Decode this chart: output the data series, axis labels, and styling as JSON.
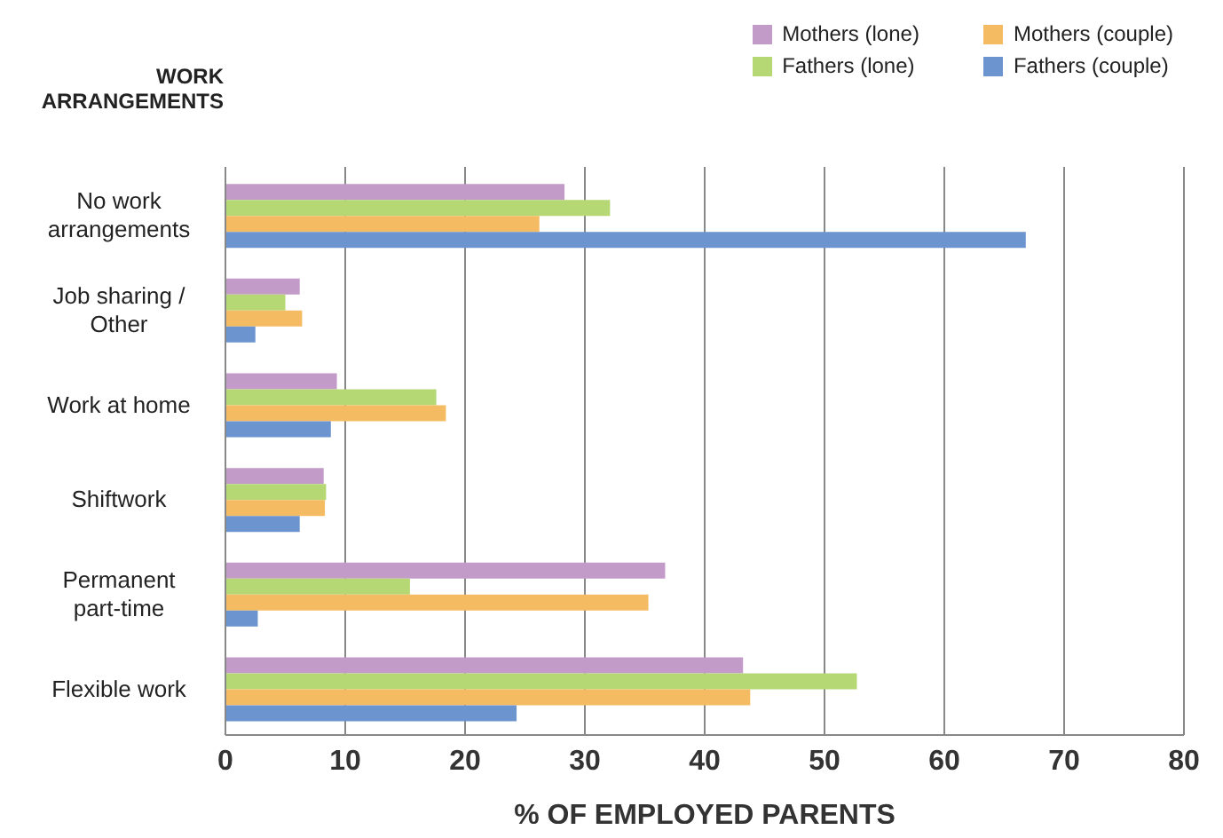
{
  "chart_data": {
    "type": "bar",
    "orientation": "horizontal",
    "ylabel": "WORK ARRANGEMENTS",
    "xlabel": "% OF EMPLOYED PARENTS",
    "categories": [
      "No work arrangements",
      "Job sharing / Other",
      "Work at home",
      "Shiftwork",
      "Permanent part-time",
      "Flexible work"
    ],
    "series": [
      {
        "name": "Mothers (lone)",
        "color": "#c39bc8",
        "values": [
          28.3,
          6.2,
          9.3,
          8.2,
          36.7,
          43.2
        ]
      },
      {
        "name": "Fathers (lone)",
        "color": "#b5d874",
        "values": [
          32.1,
          5.0,
          17.6,
          8.4,
          15.4,
          52.7
        ]
      },
      {
        "name": "Mothers (couple)",
        "color": "#f5bb62",
        "values": [
          26.2,
          6.4,
          18.4,
          8.3,
          35.3,
          43.8
        ]
      },
      {
        "name": "Fathers (couple)",
        "color": "#6c95cf",
        "values": [
          66.8,
          2.5,
          8.8,
          6.2,
          2.7,
          24.3
        ]
      }
    ],
    "xlim": [
      0,
      80
    ],
    "xticks": [
      0,
      10,
      20,
      30,
      40,
      50,
      60,
      70,
      80
    ],
    "grid": "x",
    "legend": "top right"
  }
}
